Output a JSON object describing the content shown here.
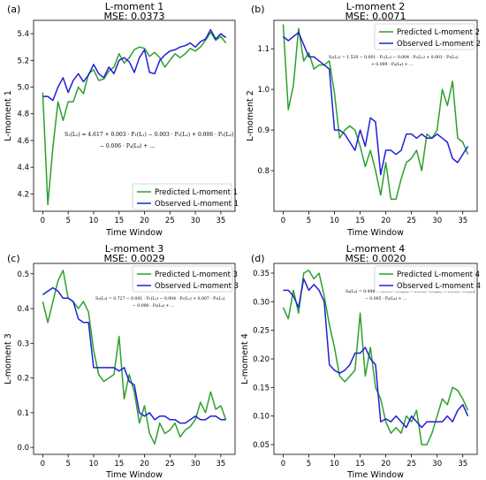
{
  "colors": {
    "predicted": "#2ca02c",
    "observed": "#1f1fd6",
    "axis": "#000000"
  },
  "xlabel": "Time Window",
  "chart_data": [
    {
      "type": "line",
      "panel_label": "(a)",
      "title": "L-moment 1",
      "subtitle": "MSE: 0.0373",
      "xlabel": "Time Window",
      "ylabel": "L-moment 1",
      "xlim": [
        -1.8,
        37.8
      ],
      "ylim": [
        4.07,
        5.5
      ],
      "xticks": [
        0,
        5,
        10,
        15,
        20,
        25,
        30,
        35
      ],
      "yticks": [
        4.2,
        4.4,
        4.6,
        4.8,
        5.0,
        5.2,
        5.4
      ],
      "ytick_labels": [
        "4.2",
        "4.4",
        "4.6",
        "4.8",
        "5.0",
        "5.2",
        "5.4"
      ],
      "legend_position": "bottom-right",
      "equation": [
        "S₁(L₁) = 4.617 + 0.003 · P₁(L₁) − 0.003 · P₂(L₂) + 0.006 · P₃(L₃)",
        "− 0.006 · P₄(L₄) + …"
      ],
      "x": [
        0,
        1,
        2,
        3,
        4,
        5,
        6,
        7,
        8,
        9,
        10,
        11,
        12,
        13,
        14,
        15,
        16,
        17,
        18,
        19,
        20,
        21,
        22,
        23,
        24,
        25,
        26,
        27,
        28,
        29,
        30,
        31,
        32,
        33,
        34,
        35,
        36
      ],
      "series": [
        {
          "name": "Predicted L-moment 1",
          "color": "#2ca02c",
          "values": [
            4.96,
            4.12,
            4.55,
            4.89,
            4.75,
            4.89,
            4.89,
            5.0,
            4.95,
            5.1,
            5.13,
            5.05,
            5.06,
            5.12,
            5.15,
            5.25,
            5.18,
            5.22,
            5.28,
            5.3,
            5.29,
            5.23,
            5.26,
            5.22,
            5.15,
            5.2,
            5.25,
            5.22,
            5.25,
            5.29,
            5.27,
            5.3,
            5.35,
            5.41,
            5.35,
            5.38,
            5.33
          ]
        },
        {
          "name": "Observed L-moment 1",
          "color": "#1f1fd6",
          "values": [
            4.93,
            4.93,
            4.9,
            5.0,
            5.07,
            4.96,
            5.05,
            5.1,
            5.04,
            5.09,
            5.17,
            5.1,
            5.07,
            5.15,
            5.1,
            5.2,
            5.22,
            5.19,
            5.11,
            5.22,
            5.28,
            5.11,
            5.1,
            5.2,
            5.24,
            5.27,
            5.28,
            5.3,
            5.31,
            5.33,
            5.3,
            5.34,
            5.36,
            5.43,
            5.36,
            5.4,
            5.37
          ]
        }
      ]
    },
    {
      "type": "line",
      "panel_label": "(b)",
      "title": "L-moment 2",
      "subtitle": "MSE: 0.0071",
      "xlabel": "Time Window",
      "ylabel": "L-moment 2",
      "xlim": [
        -1.8,
        37.8
      ],
      "ylim": [
        0.7,
        1.17
      ],
      "xticks": [
        0,
        5,
        10,
        15,
        20,
        25,
        30,
        35
      ],
      "yticks": [
        0.8,
        0.9,
        1.0,
        1.1
      ],
      "ytick_labels": [
        "0.8",
        "0.9",
        "1.0",
        "1.1"
      ],
      "legend_position": "top-right",
      "equation": [
        "S₂(L₂) = 1.520 − 0.001 · P₁(L₁) − 0.004 · P₂(L₂) + 0.001 · P₃(L₃)",
        "+ 0.009 · P₄(L₄) + …"
      ],
      "x": [
        0,
        1,
        2,
        3,
        4,
        5,
        6,
        7,
        8,
        9,
        10,
        11,
        12,
        13,
        14,
        15,
        16,
        17,
        18,
        19,
        20,
        21,
        22,
        23,
        24,
        25,
        26,
        27,
        28,
        29,
        30,
        31,
        32,
        33,
        34,
        35,
        36
      ],
      "series": [
        {
          "name": "Predicted L-moment 2",
          "color": "#2ca02c",
          "values": [
            1.16,
            0.95,
            1.01,
            1.15,
            1.07,
            1.09,
            1.05,
            1.06,
            1.06,
            1.07,
            0.99,
            0.88,
            0.9,
            0.91,
            0.9,
            0.86,
            0.81,
            0.85,
            0.8,
            0.74,
            0.82,
            0.73,
            0.73,
            0.78,
            0.82,
            0.83,
            0.85,
            0.8,
            0.89,
            0.88,
            0.9,
            1.0,
            0.96,
            1.02,
            0.88,
            0.87,
            0.84
          ]
        },
        {
          "name": "Observed L-moment 2",
          "color": "#1f1fd6",
          "values": [
            1.13,
            1.12,
            1.13,
            1.14,
            1.11,
            1.08,
            1.08,
            1.07,
            1.06,
            1.05,
            0.9,
            0.9,
            0.89,
            0.87,
            0.85,
            0.9,
            0.86,
            0.93,
            0.92,
            0.79,
            0.85,
            0.85,
            0.84,
            0.85,
            0.89,
            0.89,
            0.88,
            0.89,
            0.88,
            0.88,
            0.89,
            0.88,
            0.87,
            0.83,
            0.82,
            0.84,
            0.86
          ]
        }
      ]
    },
    {
      "type": "line",
      "panel_label": "(c)",
      "title": "L-moment 3",
      "subtitle": "MSE: 0.0029",
      "xlabel": "Time Window",
      "ylabel": "L-moment 3",
      "xlim": [
        -1.8,
        37.8
      ],
      "ylim": [
        -0.02,
        0.53
      ],
      "xticks": [
        0,
        5,
        10,
        15,
        20,
        25,
        30,
        35
      ],
      "yticks": [
        0.0,
        0.1,
        0.2,
        0.3,
        0.4,
        0.5
      ],
      "ytick_labels": [
        "0.0",
        "0.1",
        "0.2",
        "0.3",
        "0.4",
        "0.5"
      ],
      "legend_position": "top-right",
      "equation": [
        "S₃(L₃) = 0.727 − 0.001 · P₁(L₁) − 0.004 · P₂(L₂) + 0.007 · P₃(L₃)",
        "− 0.000 · P₄(L₄) + …"
      ],
      "x": [
        0,
        1,
        2,
        3,
        4,
        5,
        6,
        7,
        8,
        9,
        10,
        11,
        12,
        13,
        14,
        15,
        16,
        17,
        18,
        19,
        20,
        21,
        22,
        23,
        24,
        25,
        26,
        27,
        28,
        29,
        30,
        31,
        32,
        33,
        34,
        35,
        36
      ],
      "series": [
        {
          "name": "Predicted L-moment 3",
          "color": "#2ca02c",
          "values": [
            0.42,
            0.36,
            0.42,
            0.48,
            0.51,
            0.43,
            0.42,
            0.4,
            0.42,
            0.39,
            0.28,
            0.21,
            0.19,
            0.2,
            0.21,
            0.32,
            0.14,
            0.21,
            0.16,
            0.07,
            0.12,
            0.04,
            0.01,
            0.07,
            0.04,
            0.05,
            0.07,
            0.03,
            0.05,
            0.06,
            0.08,
            0.13,
            0.1,
            0.16,
            0.11,
            0.12,
            0.08
          ]
        },
        {
          "name": "Observed L-moment 3",
          "color": "#1f1fd6",
          "values": [
            0.44,
            0.45,
            0.46,
            0.45,
            0.43,
            0.43,
            0.42,
            0.37,
            0.36,
            0.36,
            0.23,
            0.23,
            0.23,
            0.23,
            0.23,
            0.22,
            0.23,
            0.19,
            0.18,
            0.1,
            0.09,
            0.1,
            0.08,
            0.09,
            0.09,
            0.08,
            0.08,
            0.07,
            0.07,
            0.08,
            0.09,
            0.08,
            0.08,
            0.09,
            0.09,
            0.08,
            0.08
          ]
        }
      ]
    },
    {
      "type": "line",
      "panel_label": "(d)",
      "title": "L-moment 4",
      "subtitle": "MSE: 0.0020",
      "xlabel": "Time Window",
      "ylabel": "L-moment 4",
      "xlim": [
        -1.8,
        37.8
      ],
      "ylim": [
        0.033,
        0.367
      ],
      "xticks": [
        0,
        5,
        10,
        15,
        20,
        25,
        30,
        35
      ],
      "yticks": [
        0.05,
        0.1,
        0.15,
        0.2,
        0.25,
        0.3,
        0.35
      ],
      "ytick_labels": [
        "0.05",
        "0.10",
        "0.15",
        "0.20",
        "0.25",
        "0.30",
        "0.35"
      ],
      "legend_position": "top-right",
      "equation": [
        "S₄(L₄) = 0.496 − 0.000 · P₁(L₁) − 0.003 · P₂(L₂) + 0.005 · P₃(L₃)",
        "− 0.005 · P₄(L₄) + …"
      ],
      "x": [
        0,
        1,
        2,
        3,
        4,
        5,
        6,
        7,
        8,
        9,
        10,
        11,
        12,
        13,
        14,
        15,
        16,
        17,
        18,
        19,
        20,
        21,
        22,
        23,
        24,
        25,
        26,
        27,
        28,
        29,
        30,
        31,
        32,
        33,
        34,
        35,
        36
      ],
      "series": [
        {
          "name": "Predicted L-moment 4",
          "color": "#2ca02c",
          "values": [
            0.29,
            0.27,
            0.32,
            0.28,
            0.35,
            0.355,
            0.34,
            0.35,
            0.31,
            0.26,
            0.22,
            0.17,
            0.16,
            0.17,
            0.18,
            0.28,
            0.17,
            0.22,
            0.15,
            0.13,
            0.09,
            0.07,
            0.08,
            0.07,
            0.1,
            0.09,
            0.11,
            0.05,
            0.05,
            0.07,
            0.1,
            0.13,
            0.12,
            0.15,
            0.145,
            0.13,
            0.11
          ]
        },
        {
          "name": "Observed L-moment 4",
          "color": "#1f1fd6",
          "values": [
            0.32,
            0.32,
            0.31,
            0.29,
            0.34,
            0.32,
            0.33,
            0.32,
            0.3,
            0.19,
            0.18,
            0.175,
            0.18,
            0.19,
            0.21,
            0.21,
            0.22,
            0.2,
            0.19,
            0.09,
            0.095,
            0.09,
            0.1,
            0.09,
            0.08,
            0.1,
            0.09,
            0.08,
            0.09,
            0.09,
            0.09,
            0.09,
            0.1,
            0.09,
            0.11,
            0.12,
            0.1
          ]
        }
      ]
    }
  ]
}
